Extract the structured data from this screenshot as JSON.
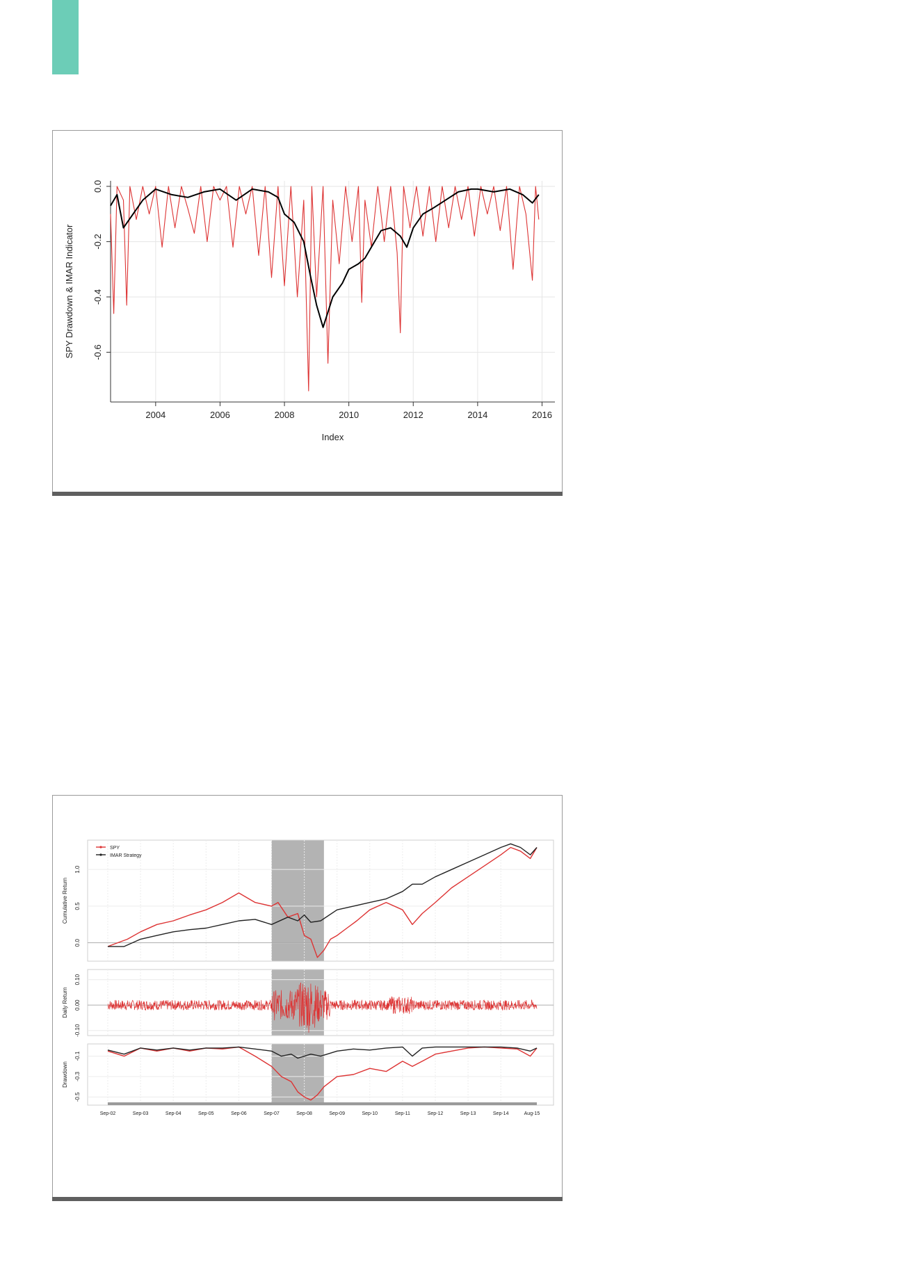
{
  "page": {
    "accent_color": "#6ccdb7"
  },
  "chart_data": [
    {
      "type": "line",
      "title": "",
      "xlabel": "Index",
      "ylabel": "SPY Drawdown & IMAR Indicator",
      "xlim": [
        2002.6,
        2016.4
      ],
      "ylim": [
        -0.78,
        0.02
      ],
      "x_ticks": [
        "2004",
        "2006",
        "2008",
        "2010",
        "2012",
        "2014",
        "2016"
      ],
      "y_ticks": [
        "0.0",
        "-0.2",
        "-0.4",
        "-0.6"
      ],
      "grid": true,
      "series": [
        {
          "color": "#000000",
          "x": [
            2002.6,
            2002.8,
            2003.0,
            2003.3,
            2003.6,
            2004.0,
            2004.5,
            2005.0,
            2005.5,
            2006.0,
            2006.5,
            2007.0,
            2007.5,
            2007.8,
            2008.0,
            2008.3,
            2008.6,
            2008.8,
            2009.0,
            2009.2,
            2009.5,
            2009.8,
            2010.0,
            2010.3,
            2010.5,
            2010.8,
            2011.0,
            2011.3,
            2011.6,
            2011.8,
            2012.0,
            2012.3,
            2012.6,
            2013.0,
            2013.4,
            2013.8,
            2014.0,
            2014.5,
            2015.0,
            2015.4,
            2015.7,
            2015.9
          ],
          "values": [
            -0.07,
            -0.03,
            -0.15,
            -0.1,
            -0.05,
            -0.01,
            -0.03,
            -0.04,
            -0.02,
            -0.01,
            -0.05,
            -0.01,
            -0.02,
            -0.04,
            -0.1,
            -0.13,
            -0.2,
            -0.32,
            -0.43,
            -0.51,
            -0.4,
            -0.35,
            -0.3,
            -0.28,
            -0.26,
            -0.2,
            -0.16,
            -0.15,
            -0.18,
            -0.22,
            -0.15,
            -0.1,
            -0.08,
            -0.05,
            -0.02,
            -0.01,
            -0.01,
            -0.02,
            -0.01,
            -0.03,
            -0.06,
            -0.03
          ]
        },
        {
          "color": "#dd3333",
          "x": [
            2002.6,
            2002.7,
            2002.8,
            2003.0,
            2003.1,
            2003.2,
            2003.4,
            2003.6,
            2003.8,
            2004.0,
            2004.2,
            2004.4,
            2004.6,
            2004.8,
            2005.0,
            2005.2,
            2005.4,
            2005.6,
            2005.8,
            2006.0,
            2006.2,
            2006.4,
            2006.6,
            2006.8,
            2007.0,
            2007.2,
            2007.4,
            2007.6,
            2007.8,
            2008.0,
            2008.2,
            2008.4,
            2008.6,
            2008.75,
            2008.85,
            2009.0,
            2009.2,
            2009.35,
            2009.5,
            2009.7,
            2009.9,
            2010.1,
            2010.3,
            2010.4,
            2010.5,
            2010.7,
            2010.9,
            2011.1,
            2011.3,
            2011.5,
            2011.6,
            2011.7,
            2011.9,
            2012.1,
            2012.3,
            2012.5,
            2012.7,
            2012.9,
            2013.1,
            2013.3,
            2013.5,
            2013.7,
            2013.9,
            2014.1,
            2014.3,
            2014.5,
            2014.7,
            2014.9,
            2015.1,
            2015.3,
            2015.5,
            2015.7,
            2015.8,
            2015.9
          ],
          "values": [
            -0.1,
            -0.46,
            0.0,
            -0.05,
            -0.43,
            0.0,
            -0.12,
            0.0,
            -0.1,
            0.0,
            -0.22,
            0.0,
            -0.15,
            0.0,
            -0.08,
            -0.17,
            0.0,
            -0.2,
            0.0,
            -0.05,
            0.0,
            -0.22,
            0.0,
            -0.1,
            0.0,
            -0.25,
            0.0,
            -0.33,
            0.0,
            -0.36,
            0.0,
            -0.4,
            -0.05,
            -0.74,
            0.0,
            -0.4,
            0.0,
            -0.64,
            -0.05,
            -0.28,
            0.0,
            -0.2,
            0.0,
            -0.42,
            -0.05,
            -0.22,
            0.0,
            -0.2,
            0.0,
            -0.24,
            -0.53,
            0.0,
            -0.15,
            0.0,
            -0.18,
            0.0,
            -0.2,
            0.0,
            -0.15,
            0.0,
            -0.12,
            0.0,
            -0.18,
            0.0,
            -0.1,
            0.0,
            -0.16,
            0.0,
            -0.3,
            0.0,
            -0.1,
            -0.34,
            0.0,
            -0.12
          ]
        }
      ]
    },
    {
      "type": "line",
      "title": "",
      "x_ticks": [
        "Sep-02",
        "Sep-03",
        "Sep-04",
        "Sep-05",
        "Sep-06",
        "Sep-07",
        "Sep-08",
        "Sep-09",
        "Sep-10",
        "Sep-11",
        "Sep-12",
        "Sep-13",
        "Sep-14",
        "Aug-15"
      ],
      "shaded_period": [
        "Sep-07",
        "Sep-09"
      ],
      "legend_position": "top-left",
      "panels": [
        {
          "ylabel": "Cumulative Return",
          "ylim": [
            -0.25,
            1.4
          ],
          "y_ticks": [
            "0.0",
            "0.5",
            "1.0"
          ],
          "series": [
            {
              "name": "SPY",
              "color": "#dd3333",
              "x": [
                0,
                0.3,
                0.6,
                1.0,
                1.5,
                2.0,
                2.5,
                3.0,
                3.5,
                4.0,
                4.5,
                5.0,
                5.2,
                5.5,
                5.8,
                6.0,
                6.2,
                6.4,
                6.6,
                6.8,
                7.0,
                7.3,
                7.6,
                8.0,
                8.5,
                9.0,
                9.3,
                9.6,
                10.0,
                10.5,
                11.0,
                11.5,
                12.0,
                12.3,
                12.6,
                12.9,
                13.1
              ],
              "values": [
                -0.05,
                0.0,
                0.05,
                0.15,
                0.25,
                0.3,
                0.38,
                0.45,
                0.55,
                0.68,
                0.55,
                0.5,
                0.55,
                0.35,
                0.4,
                0.1,
                0.05,
                -0.2,
                -0.1,
                0.05,
                0.1,
                0.2,
                0.3,
                0.45,
                0.55,
                0.45,
                0.25,
                0.4,
                0.55,
                0.75,
                0.9,
                1.05,
                1.2,
                1.3,
                1.25,
                1.15,
                1.3
              ]
            },
            {
              "name": "IMAR Strategy",
              "color": "#222222",
              "x": [
                0,
                0.5,
                1.0,
                1.5,
                2.0,
                2.5,
                3.0,
                3.5,
                4.0,
                4.5,
                5.0,
                5.5,
                5.8,
                6.0,
                6.2,
                6.5,
                7.0,
                7.5,
                8.0,
                8.5,
                9.0,
                9.3,
                9.6,
                10.0,
                10.5,
                11.0,
                11.5,
                12.0,
                12.3,
                12.6,
                12.9,
                13.1
              ],
              "values": [
                -0.05,
                -0.05,
                0.05,
                0.1,
                0.15,
                0.18,
                0.2,
                0.25,
                0.3,
                0.32,
                0.25,
                0.35,
                0.3,
                0.38,
                0.28,
                0.3,
                0.45,
                0.5,
                0.55,
                0.6,
                0.7,
                0.8,
                0.8,
                0.9,
                1.0,
                1.1,
                1.2,
                1.3,
                1.35,
                1.3,
                1.2,
                1.3
              ]
            }
          ]
        },
        {
          "ylabel": "Daily Return",
          "ylim": [
            -0.12,
            0.14
          ],
          "y_ticks": [
            "0.10",
            "0.00",
            "-0.10"
          ],
          "series": [
            {
              "color": "#dd3333",
              "x": [
                0,
                13.1
              ],
              "values": [
                0,
                0
              ]
            }
          ]
        },
        {
          "ylabel": "Drawdown",
          "ylim": [
            -0.58,
            0.02
          ],
          "y_ticks": [
            "-0.1",
            "-0.3",
            "-0.5"
          ],
          "series": [
            {
              "color": "#dd3333",
              "x": [
                0,
                0.5,
                1.0,
                1.5,
                2.0,
                2.5,
                3.0,
                3.5,
                4.0,
                4.5,
                5.0,
                5.3,
                5.6,
                5.8,
                6.0,
                6.2,
                6.4,
                6.6,
                7.0,
                7.5,
                8.0,
                8.5,
                9.0,
                9.3,
                9.6,
                10.0,
                10.5,
                11.0,
                11.5,
                12.0,
                12.5,
                12.9,
                13.1
              ],
              "values": [
                -0.05,
                -0.1,
                -0.02,
                -0.05,
                -0.02,
                -0.05,
                -0.02,
                -0.03,
                -0.01,
                -0.1,
                -0.2,
                -0.3,
                -0.35,
                -0.45,
                -0.5,
                -0.53,
                -0.48,
                -0.4,
                -0.3,
                -0.28,
                -0.22,
                -0.25,
                -0.15,
                -0.2,
                -0.15,
                -0.08,
                -0.05,
                -0.02,
                -0.01,
                -0.02,
                -0.03,
                -0.1,
                -0.02
              ]
            },
            {
              "color": "#222222",
              "x": [
                0,
                0.5,
                1.0,
                1.5,
                2.0,
                2.5,
                3.0,
                3.5,
                4.0,
                4.5,
                5.0,
                5.3,
                5.6,
                5.8,
                6.0,
                6.2,
                6.5,
                7.0,
                7.5,
                8.0,
                8.5,
                9.0,
                9.3,
                9.6,
                10.0,
                11.0,
                12.0,
                12.5,
                12.9,
                13.1
              ],
              "values": [
                -0.04,
                -0.08,
                -0.02,
                -0.04,
                -0.02,
                -0.04,
                -0.02,
                -0.02,
                -0.01,
                -0.03,
                -0.05,
                -0.1,
                -0.08,
                -0.12,
                -0.1,
                -0.08,
                -0.1,
                -0.05,
                -0.03,
                -0.04,
                -0.02,
                -0.01,
                -0.1,
                -0.02,
                -0.01,
                -0.01,
                -0.01,
                -0.02,
                -0.05,
                -0.02
              ]
            }
          ]
        }
      ]
    }
  ]
}
